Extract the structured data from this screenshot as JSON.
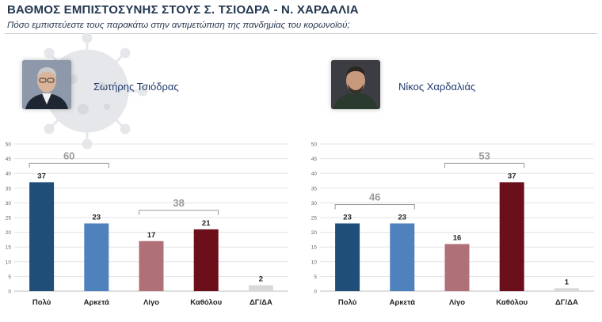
{
  "header": {
    "title": "ΒΑΘΜΟΣ ΕΜΠΙΣΤΟΣΥΝΗΣ ΣΤΟΥΣ Σ. ΤΣΙΟΔΡΑ - Ν. ΧΑΡΔΑΛΙΑ",
    "subtitle": "Πόσο εμπιστεύεστε τους παρακάτω στην αντιμετώπιση της πανδημίας του κορωνοϊού;"
  },
  "people": [
    {
      "name": "Σωτήρης Τσιόδρας",
      "photo_icon": "person-photo-tsiodras"
    },
    {
      "name": "Νίκος Χαρδαλιάς",
      "photo_icon": "person-photo-hardalias"
    }
  ],
  "colors": {
    "poly": "#1f4e79",
    "arketa": "#4f81bd",
    "ligo": "#b07078",
    "katholou": "#6b0f1a",
    "dgda": "#d9d9d9",
    "bracket": "#9a9a9a"
  },
  "chart_data": [
    {
      "type": "bar",
      "title": "Σωτήρης Τσιόδρας",
      "categories": [
        "Πολύ",
        "Αρκετά",
        "Λίγο",
        "Καθόλου",
        "ΔΓ/ΔΑ"
      ],
      "values": [
        37,
        23,
        17,
        21,
        2
      ],
      "ylim": [
        0,
        50
      ],
      "yticks": [
        0,
        5,
        10,
        15,
        20,
        25,
        30,
        35,
        40,
        45,
        50
      ],
      "grid": true,
      "brackets": [
        {
          "from": 0,
          "to": 1,
          "value": 60
        },
        {
          "from": 2,
          "to": 3,
          "value": 38
        }
      ]
    },
    {
      "type": "bar",
      "title": "Νίκος Χαρδαλιάς",
      "categories": [
        "Πολύ",
        "Αρκετά",
        "Λίγο",
        "Καθόλου",
        "ΔΓ/ΔΑ"
      ],
      "values": [
        23,
        23,
        16,
        37,
        1
      ],
      "ylim": [
        0,
        50
      ],
      "yticks": [
        0,
        5,
        10,
        15,
        20,
        25,
        30,
        35,
        40,
        45,
        50
      ],
      "grid": true,
      "brackets": [
        {
          "from": 0,
          "to": 1,
          "value": 46
        },
        {
          "from": 2,
          "to": 3,
          "value": 53
        }
      ]
    }
  ]
}
